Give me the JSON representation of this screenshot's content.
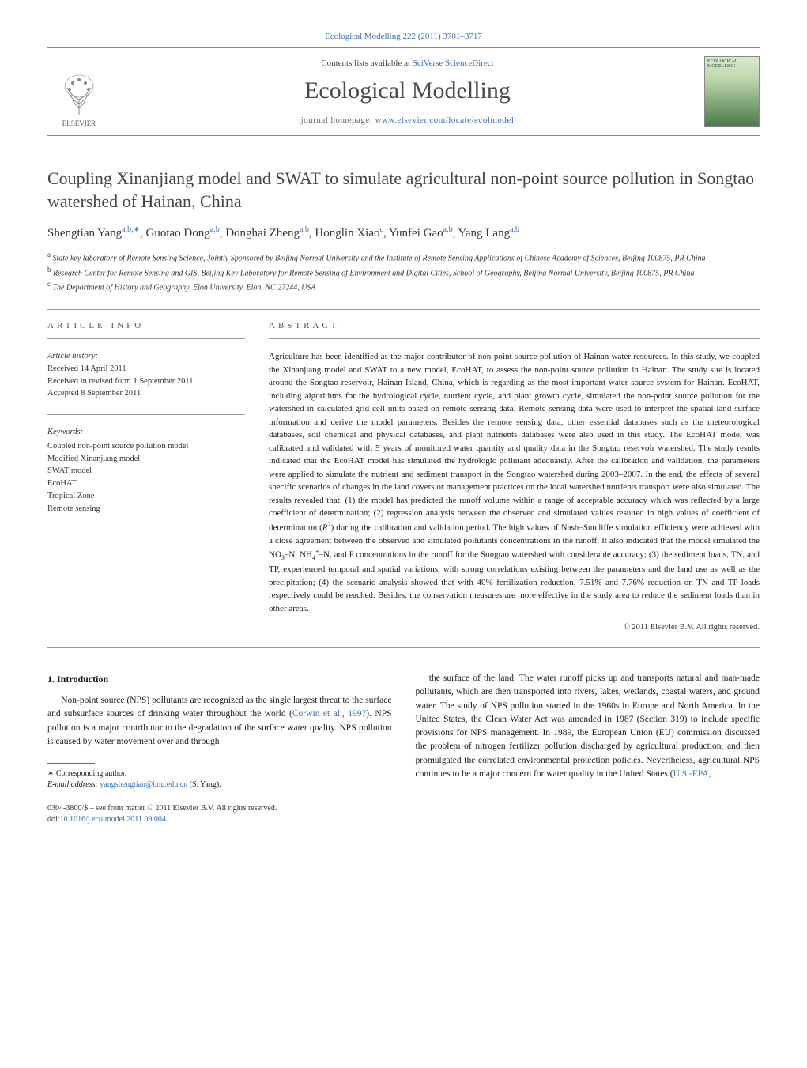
{
  "journal_ref": "Ecological Modelling 222 (2011) 3701–3717",
  "header": {
    "contents_prefix": "Contents lists available at ",
    "contents_link": "SciVerse ScienceDirect",
    "journal_title": "Ecological Modelling",
    "homepage_prefix": "journal homepage: ",
    "homepage_url": "www.elsevier.com/locate/ecolmodel",
    "publisher_logo_label": "ELSEVIER",
    "cover_label": "ECOLOGICAL MODELLING"
  },
  "article": {
    "title": "Coupling Xinanjiang model and SWAT to simulate agricultural non-point source pollution in Songtao watershed of Hainan, China",
    "authors_html": "Shengtian Yang<sup>a,b,∗</sup>, Guotao Dong<sup>a,b</sup>, Donghai Zheng<sup>a,b</sup>, Honglin Xiao<sup>c</sup>, Yunfei Gao<sup>a,b</sup>, Yang Lang<sup>a,b</sup>",
    "affiliations": [
      {
        "sup": "a",
        "text": "State key laboratory of Remote Sensing Science, Jointly Sponsored by Beijing Normal University and the Institute of Remote Sensing Applications of Chinese Academy of Sciences, Beijing 100875, PR China"
      },
      {
        "sup": "b",
        "text": "Research Center for Remote Sensing and GIS, Beijing Key Laboratory for Remote Sensing of Environment and Digital Cities, School of Geography, Beijing Normal University, Beijing 100875, PR China"
      },
      {
        "sup": "c",
        "text": "The Department of History and Geography, Elon University, Elon, NC 27244, USA"
      }
    ]
  },
  "info": {
    "label": "article info",
    "history_label": "Article history:",
    "history": [
      "Received 14 April 2011",
      "Received in revised form 1 September 2011",
      "Accepted 8 September 2011"
    ],
    "keywords_label": "Keywords:",
    "keywords": [
      "Coupled non-point source pollution model",
      "Modified Xinanjiang model",
      "SWAT model",
      "EcoHAT",
      "Tropical Zone",
      "Remote sensing"
    ]
  },
  "abstract": {
    "label": "abstract",
    "text_parts": {
      "p1": "Agriculture has been identified as the major contributor of non-point source pollution of Hainan water resources. In this study, we coupled the Xinanjiang model and SWAT to a new model, EcoHAT, to assess the non-point source pollution in Hainan. The study site is located around the Songtao reservoir, Hainan Island, China, which is regarding as the most important water source system for Hainan. EcoHAT, including algorithms for the hydrological cycle, nutrient cycle, and plant growth cycle, simulated the non-point source pollution for the watershed in calculated grid cell units based on remote sensing data. Remote sensing data were used to interpret the spatial land surface information and derive the model parameters. Besides the remote sensing data, other essential databases such as the meteorological databases, soil chemical and physical databases, and plant nutrients databases were also used in this study. The EcoHAT model was calibrated and validated with 5 years of monitored water quantity and quality data in the Songtao reservoir watershed. The study results indicated that the EcoHAT model has simulated the hydrologic pollutant adequately. After the calibration and validation, the parameters were applied to simulate the nutrient and sediment transport in the Songtao watershed during 2003–2007. In the end, the effects of several specific scenarios of changes in the land covers or management practices on the local watershed nutrients transport were also simulated. The results revealed that: (1) the model has predicted the runoff volume within a range of acceptable accuracy which was reflected by a large coefficient of determination; (2) regression analysis between the observed and simulated values resulted in high values of coefficient of determination (",
      "r2": "R",
      "r2_sup": "2",
      "p2": ") during the calibration and validation period. The high values of Nash–Sutcliffe simulation efficiency were achieved with a close agreement between the observed and simulated pollutants concentrations in the runoff. It also indicated that the model simulated the NO",
      "no3_sub": "3",
      "p3": "–N, NH",
      "nh4_sub": "4",
      "nh4_sup": "+",
      "p4": "–N, and P concentrations in the runoff for the Songtao watershed with considerable accuracy; (3) the sediment loads, TN, and TP, experienced temporal and spatial variations, with strong correlations existing between the parameters and the land use as well as the precipitation; (4) the scenario analysis showed that with 40% fertilization reduction, 7.51% and 7.76% reduction on TN and TP loads respectively could be reached. Besides, the conservation measures are more effective in the study area to reduce the sediment loads than in other areas."
    },
    "copyright": "© 2011 Elsevier B.V. All rights reserved."
  },
  "intro": {
    "heading": "1.  Introduction",
    "col1": "Non-point source (NPS) pollutants are recognized as the single largest threat to the surface and subsurface sources of drinking water throughout the world (Corwin et al., 1997). NPS pollution is a major contributor to the degradation of the surface water quality. NPS pollution is caused by water movement over and through",
    "col1_cite": "Corwin et al., 1997",
    "col2": "the surface of the land. The water runoff picks up and transports natural and man-made pollutants, which are then transported into rivers, lakes, wetlands, coastal waters, and ground water. The study of NPS pollution started in the 1960s in Europe and North America. In the United States, the Clean Water Act was amended in 1987 (Section 319) to include specific provisions for NPS management. In 1989, the European Union (EU) commission discussed the problem of nitrogen fertilizer pollution discharged by agricultural production, and then promulgated the correlated environmental protection policies. Nevertheless, agricultural NPS continues to be a major concern for water quality in the United States (U.S.-EPA,",
    "col2_cite": "U.S.-EPA,"
  },
  "footnote": {
    "corr_label": "∗ Corresponding author.",
    "email_label": "E-mail address: ",
    "email": "yangshengtian@bnu.edu.cn",
    "email_suffix": " (S. Yang)."
  },
  "footer": {
    "line1": "0304-3800/$ – see front matter © 2011 Elsevier B.V. All rights reserved.",
    "doi_prefix": "doi:",
    "doi": "10.1016/j.ecolmodel.2011.09.004"
  },
  "colors": {
    "link": "#3a6fb0",
    "text": "#1a1a1a",
    "muted": "#555555",
    "rule": "#999999"
  }
}
